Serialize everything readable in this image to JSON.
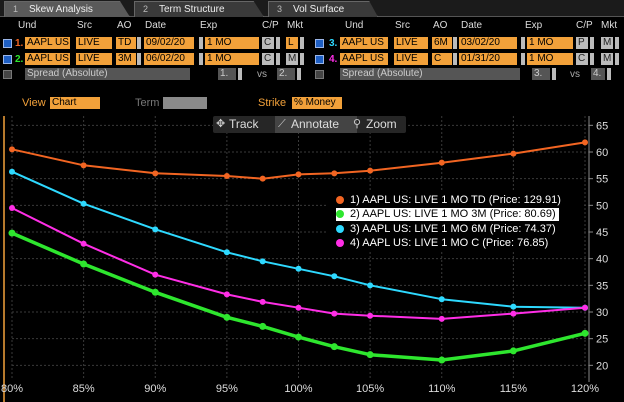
{
  "tabs": [
    {
      "num": "1",
      "label": "Skew Analysis"
    },
    {
      "num": "2",
      "label": "Term Structure"
    },
    {
      "num": "3",
      "label": "Vol Surface"
    }
  ],
  "headers": {
    "und": "Und",
    "src": "Src",
    "ao": "AO",
    "date": "Date",
    "exp": "Exp",
    "cp": "C/P",
    "mkt": "Mkt"
  },
  "left_rows": [
    {
      "idx": "1.",
      "color": "#f26522",
      "und": "AAPL US",
      "src": "LIVE",
      "ao": "TD",
      "date": "09/02/20",
      "exp": "1 MO",
      "cp": "C",
      "mkt": "L"
    },
    {
      "idx": "2.",
      "color": "#2ee62e",
      "und": "AAPL US",
      "src": "LIVE",
      "ao": "3M",
      "date": "06/02/20",
      "exp": "1 MO",
      "cp": "C",
      "mkt": "M"
    }
  ],
  "right_rows": [
    {
      "idx": "3.",
      "color": "#2ed9ff",
      "und": "AAPL US",
      "src": "LIVE",
      "ao": "6M",
      "date": "03/02/20",
      "exp": "1 MO",
      "cp": "P",
      "mkt": "M"
    },
    {
      "idx": "4.",
      "color": "#ff2ee6",
      "und": "AAPL US",
      "src": "LIVE",
      "ao": "C",
      "date": "01/31/20",
      "exp": "1 MO",
      "cp": "C",
      "mkt": "M"
    }
  ],
  "spread_left": {
    "label": "Spread (Absolute)",
    "a": "1.",
    "vs": "vs",
    "b": "2."
  },
  "spread_right": {
    "label": "Spread (Absolute)",
    "a": "3.",
    "vs": "vs",
    "b": "4."
  },
  "options": {
    "view_label": "View",
    "view_value": "Chart",
    "term_label": "Term",
    "term_value": "",
    "strike_label": "Strike",
    "strike_value": "% Money"
  },
  "toolbar": {
    "track": "Track",
    "annotate": "Annotate",
    "zoom": "Zoom"
  },
  "chart_data": {
    "type": "line",
    "categories": [
      "80%",
      "85%",
      "90%",
      "95%",
      "100%",
      "105%",
      "110%",
      "115%",
      "120%"
    ],
    "x": [
      80,
      85,
      90,
      95,
      97.5,
      100,
      102.5,
      105,
      110,
      115,
      120
    ],
    "ylim": [
      18,
      66
    ],
    "yticks": [
      20,
      25,
      30,
      35,
      40,
      45,
      50,
      55,
      60,
      65
    ],
    "grid": true,
    "series": [
      {
        "name": "1) AAPL US: LIVE 1 MO TD (Price: 129.91)",
        "color": "#f26522",
        "points": [
          [
            80,
            60.5
          ],
          [
            85,
            57.5
          ],
          [
            90,
            56
          ],
          [
            95,
            55.5
          ],
          [
            97.5,
            55
          ],
          [
            100,
            55.8
          ],
          [
            102.5,
            56
          ],
          [
            105,
            56.5
          ],
          [
            110,
            58
          ],
          [
            115,
            59.7
          ],
          [
            120,
            61.8
          ]
        ]
      },
      {
        "name": "2) AAPL US: LIVE 1 MO 3M (Price: 80.69)",
        "color": "#2ee62e",
        "points": [
          [
            80,
            44.8
          ],
          [
            85,
            39
          ],
          [
            90,
            33.7
          ],
          [
            95,
            29
          ],
          [
            97.5,
            27.3
          ],
          [
            100,
            25.3
          ],
          [
            102.5,
            23.5
          ],
          [
            105,
            22
          ],
          [
            110,
            21
          ],
          [
            115,
            22.7
          ],
          [
            120,
            26
          ]
        ]
      },
      {
        "name": "3) AAPL US: LIVE 1 MO 6M (Price: 74.37)",
        "color": "#2ed9ff",
        "points": [
          [
            80,
            56.3
          ],
          [
            85,
            50.3
          ],
          [
            90,
            45.5
          ],
          [
            95,
            41.2
          ],
          [
            97.5,
            39.5
          ],
          [
            100,
            38.1
          ],
          [
            102.5,
            36.7
          ],
          [
            105,
            35
          ],
          [
            110,
            32.4
          ],
          [
            115,
            31
          ],
          [
            120,
            30.8
          ]
        ]
      },
      {
        "name": "4) AAPL US: LIVE 1 MO C (Price: 76.85)",
        "color": "#ff2ee6",
        "points": [
          [
            80,
            49.5
          ],
          [
            85,
            42.8
          ],
          [
            90,
            37
          ],
          [
            95,
            33.3
          ],
          [
            97.5,
            31.9
          ],
          [
            100,
            30.8
          ],
          [
            102.5,
            29.7
          ],
          [
            105,
            29.3
          ],
          [
            110,
            28.7
          ],
          [
            115,
            29.7
          ],
          [
            120,
            30.8
          ]
        ]
      }
    ],
    "highlighted_series": 1
  }
}
